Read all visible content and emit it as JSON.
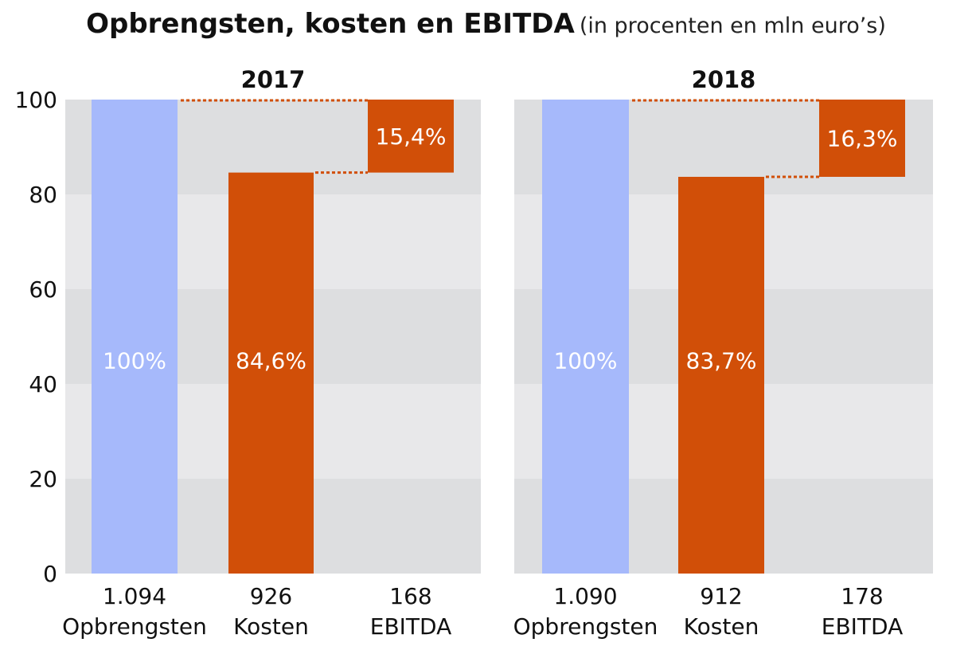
{
  "title": "Opbrengsten, kosten en EBITDA",
  "subtitle": "(in procenten en mln euro’s)",
  "colors": {
    "revenue": "#a6b9fb",
    "cost": "#d14f08",
    "band_dark": "#dddee0",
    "band_light": "#e8e8ea",
    "connector": "#d14f08"
  },
  "chart_data": [
    {
      "type": "bar",
      "title": "2017",
      "ylim": [
        0,
        100
      ],
      "yticks": [
        0,
        20,
        40,
        60,
        80,
        100
      ],
      "grid": "alternating bands",
      "categories": [
        "Opbrengsten",
        "Kosten",
        "EBITDA"
      ],
      "amounts": [
        "1.094",
        "926",
        "168"
      ],
      "values": [
        100,
        84.6,
        15.4
      ],
      "bar_bases": [
        0,
        0,
        84.6
      ],
      "labels": [
        "100%",
        "84,6%",
        "15,4%"
      ]
    },
    {
      "type": "bar",
      "title": "2018",
      "ylim": [
        0,
        100
      ],
      "yticks": [
        0,
        20,
        40,
        60,
        80,
        100
      ],
      "grid": "alternating bands",
      "categories": [
        "Opbrengsten",
        "Kosten",
        "EBITDA"
      ],
      "amounts": [
        "1.090",
        "912",
        "178"
      ],
      "values": [
        100,
        83.7,
        16.3
      ],
      "bar_bases": [
        0,
        0,
        83.7
      ],
      "labels": [
        "100%",
        "83,7%",
        "16,3%"
      ]
    }
  ]
}
